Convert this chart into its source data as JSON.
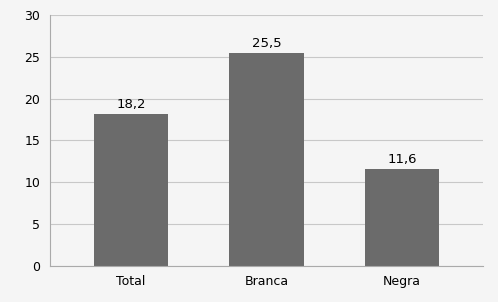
{
  "categories": [
    "Total",
    "Branca",
    "Negra"
  ],
  "values": [
    18.2,
    25.5,
    11.6
  ],
  "bar_color": "#6b6b6b",
  "bar_width": 0.55,
  "ylim": [
    0,
    30
  ],
  "yticks": [
    0,
    5,
    10,
    15,
    20,
    25,
    30
  ],
  "label_fontsize": 9.5,
  "tick_fontsize": 9.0,
  "background_color": "#f5f5f5",
  "grid_color": "#c8c8c8",
  "label_format": [
    "18,2",
    "25,5",
    "11,6"
  ]
}
